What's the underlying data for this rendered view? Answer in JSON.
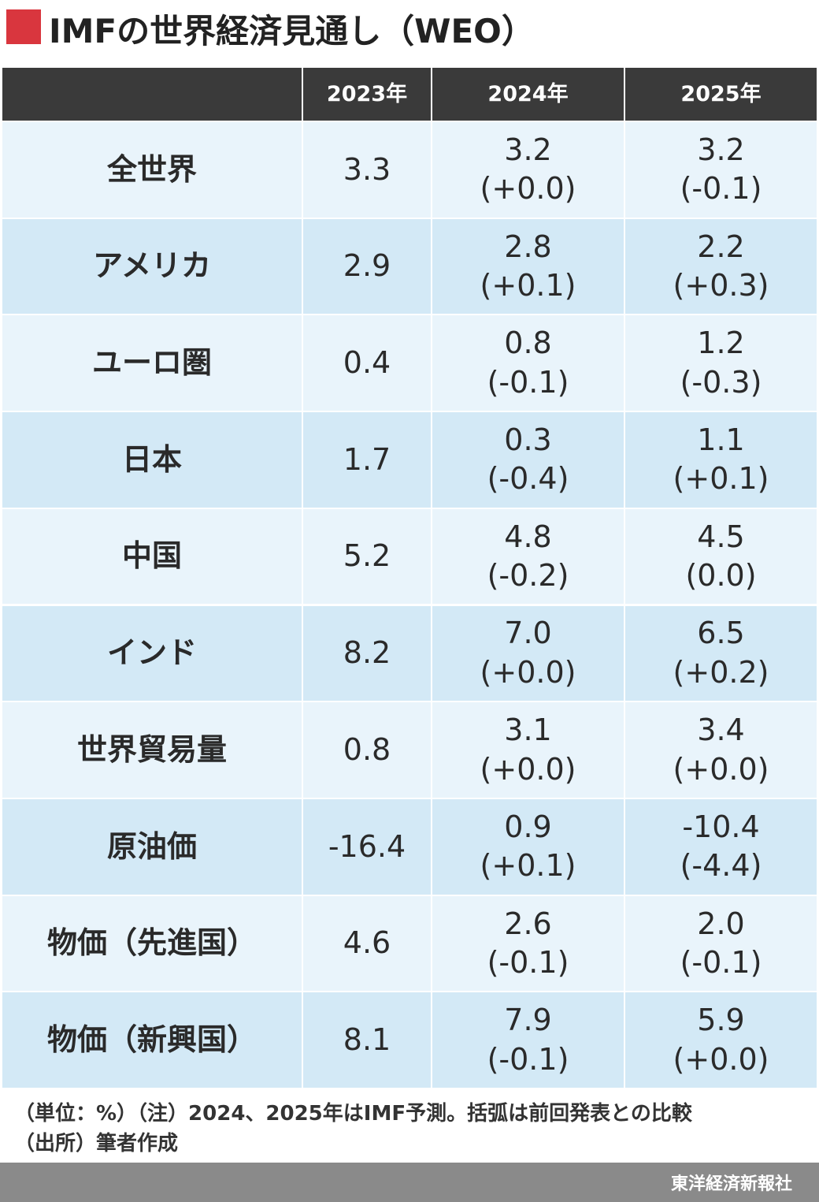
{
  "title": "IMFの世界経済見通し（WEO）",
  "table": {
    "header": [
      "2023年",
      "2024年",
      "2025年"
    ],
    "rows": [
      [
        "全世界",
        "3.3",
        "3.2",
        "(+0.0)",
        "3.2",
        "(-0.1)"
      ],
      [
        "アメリカ",
        "2.9",
        "2.8",
        "(+0.1)",
        "2.2",
        "(+0.3)"
      ],
      [
        "ユーロ圏",
        "0.4",
        "0.8",
        "(-0.1)",
        "1.2",
        "(-0.3)"
      ],
      [
        "日本",
        "1.7",
        "0.3",
        "(-0.4)",
        "1.1",
        "(+0.1)"
      ],
      [
        "中国",
        "5.2",
        "4.8",
        "(-0.2)",
        "4.5",
        "(0.0)"
      ],
      [
        "インド",
        "8.2",
        "7.0",
        "(+0.0)",
        "6.5",
        "(+0.2)"
      ],
      [
        "世界貿易量",
        "0.8",
        "3.1",
        "(+0.0)",
        "3.4",
        "(+0.0)"
      ],
      [
        "原油価",
        "-16.4",
        "0.9",
        "(+0.1)",
        "-10.4",
        "(-4.4)"
      ],
      [
        "物価（先進国）",
        "4.6",
        "2.6",
        "(-0.1)",
        "2.0",
        "(-0.1)"
      ],
      [
        "物価（新興国）",
        "8.1",
        "7.9",
        "(-0.1)",
        "5.9",
        "(+0.0)"
      ]
    ]
  },
  "notes": [
    "（単位：%）（注）2024、2025年はIMF予測。括弧は前回発表との比較",
    "（出所）筆者作成"
  ],
  "source": "東洋経済新報社"
}
